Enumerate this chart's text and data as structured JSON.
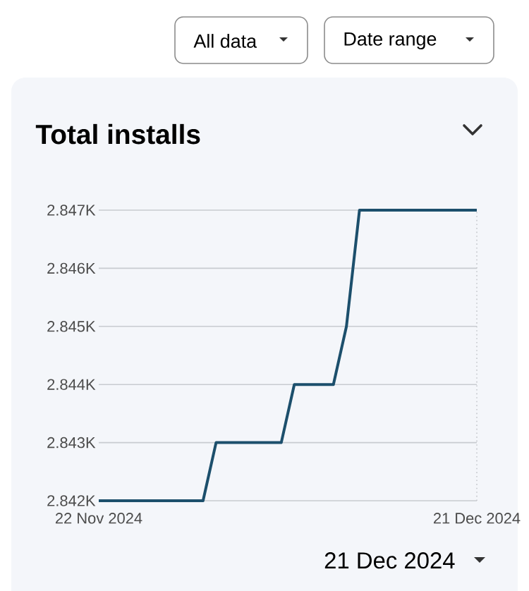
{
  "chart_data": {
    "type": "line",
    "title": "Total installs",
    "x": [
      "2024-11-22",
      "2024-11-30",
      "2024-12-01",
      "2024-12-06",
      "2024-12-07",
      "2024-12-10",
      "2024-12-11",
      "2024-12-12",
      "2024-12-21"
    ],
    "series": [
      {
        "color": "#1c4f6c",
        "values": [
          2842,
          2842,
          2843,
          2843,
          2844,
          2844,
          2845,
          2847,
          2847
        ]
      }
    ],
    "xlim": [
      "2024-11-22",
      "2024-12-21"
    ],
    "xticks": [
      {
        "value": "2024-11-22",
        "label": "22 Nov 2024"
      },
      {
        "value": "2024-12-21",
        "label": "21 Dec 2024"
      }
    ],
    "ylim": [
      2842,
      2847
    ],
    "yticks": [
      {
        "value": 2842,
        "label": "2.842K"
      },
      {
        "value": 2843,
        "label": "2.843K"
      },
      {
        "value": 2844,
        "label": "2.844K"
      },
      {
        "value": 2845,
        "label": "2.845K"
      },
      {
        "value": 2846,
        "label": "2.846K"
      },
      {
        "value": 2847,
        "label": "2.847K"
      }
    ],
    "grid": "y",
    "ref_lines": [
      {
        "axis": "x",
        "value": "2024-12-21",
        "color": "#c4c7cc",
        "line_style": "dotted"
      }
    ],
    "annotations": [
      "All data",
      "Date range",
      "21 Dec 2024"
    ]
  }
}
